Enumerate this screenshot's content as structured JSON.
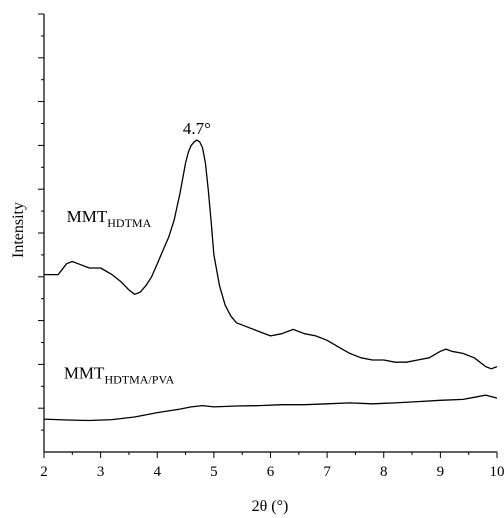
{
  "chart_data": {
    "type": "line",
    "title": "",
    "xlabel": "2θ (°)",
    "ylabel": "Intensity",
    "xlim": [
      2,
      10
    ],
    "ylim": [
      0,
      100
    ],
    "x_ticks": [
      2,
      3,
      4,
      5,
      6,
      7,
      8,
      9,
      10
    ],
    "y_tick_labels_shown": false,
    "grid": false,
    "legend": "none",
    "annotations": [
      {
        "text": "4.7°",
        "x": 4.7,
        "y": 72.6
      }
    ],
    "series": [
      {
        "name": "MMT_HDTMA",
        "label_main": "MMT",
        "label_sub": "HDTMA",
        "label_anchor": {
          "x": 2.4,
          "y": 52.5
        },
        "x": [
          2.0,
          2.25,
          2.4,
          2.5,
          2.6,
          2.8,
          3.0,
          3.2,
          3.35,
          3.5,
          3.6,
          3.7,
          3.8,
          3.9,
          4.0,
          4.1,
          4.2,
          4.3,
          4.4,
          4.5,
          4.55,
          4.6,
          4.65,
          4.7,
          4.75,
          4.8,
          4.85,
          4.9,
          4.95,
          5.0,
          5.1,
          5.2,
          5.3,
          5.4,
          5.6,
          5.8,
          6.0,
          6.2,
          6.4,
          6.6,
          6.8,
          7.0,
          7.2,
          7.4,
          7.6,
          7.8,
          8.0,
          8.2,
          8.4,
          8.6,
          8.8,
          9.0,
          9.1,
          9.2,
          9.4,
          9.6,
          9.8,
          9.9,
          10.0
        ],
        "y": [
          40.5,
          40.5,
          43.0,
          43.5,
          43.0,
          42.0,
          42.0,
          40.5,
          39.0,
          37.0,
          36.0,
          36.5,
          38.0,
          40.0,
          43.0,
          46.0,
          49.0,
          53.0,
          59.0,
          66.0,
          68.5,
          70.0,
          70.8,
          71.2,
          70.8,
          69.5,
          66.0,
          60.0,
          53.0,
          45.0,
          38.0,
          33.5,
          31.0,
          29.5,
          28.5,
          27.5,
          26.5,
          27.0,
          28.0,
          27.0,
          26.5,
          25.5,
          24.0,
          22.5,
          21.5,
          21.0,
          21.0,
          20.5,
          20.5,
          21.0,
          21.5,
          23.0,
          23.5,
          23.0,
          22.5,
          21.5,
          19.5,
          19.0,
          19.5
        ]
      },
      {
        "name": "MMT_HDTMA/PVA",
        "label_main": "MMT",
        "label_sub": "HDTMA/PVA",
        "label_anchor": {
          "x": 2.35,
          "y": 16.8
        },
        "x": [
          2.0,
          2.4,
          2.8,
          3.2,
          3.6,
          4.0,
          4.4,
          4.6,
          4.8,
          5.0,
          5.4,
          5.8,
          6.2,
          6.6,
          7.0,
          7.4,
          7.8,
          8.2,
          8.6,
          9.0,
          9.4,
          9.6,
          9.8,
          10.0
        ],
        "y": [
          7.5,
          7.3,
          7.2,
          7.4,
          8.0,
          9.0,
          9.8,
          10.3,
          10.6,
          10.3,
          10.5,
          10.6,
          10.8,
          10.8,
          11.0,
          11.2,
          11.0,
          11.2,
          11.5,
          11.8,
          12.0,
          12.5,
          13.0,
          12.3
        ]
      }
    ]
  }
}
